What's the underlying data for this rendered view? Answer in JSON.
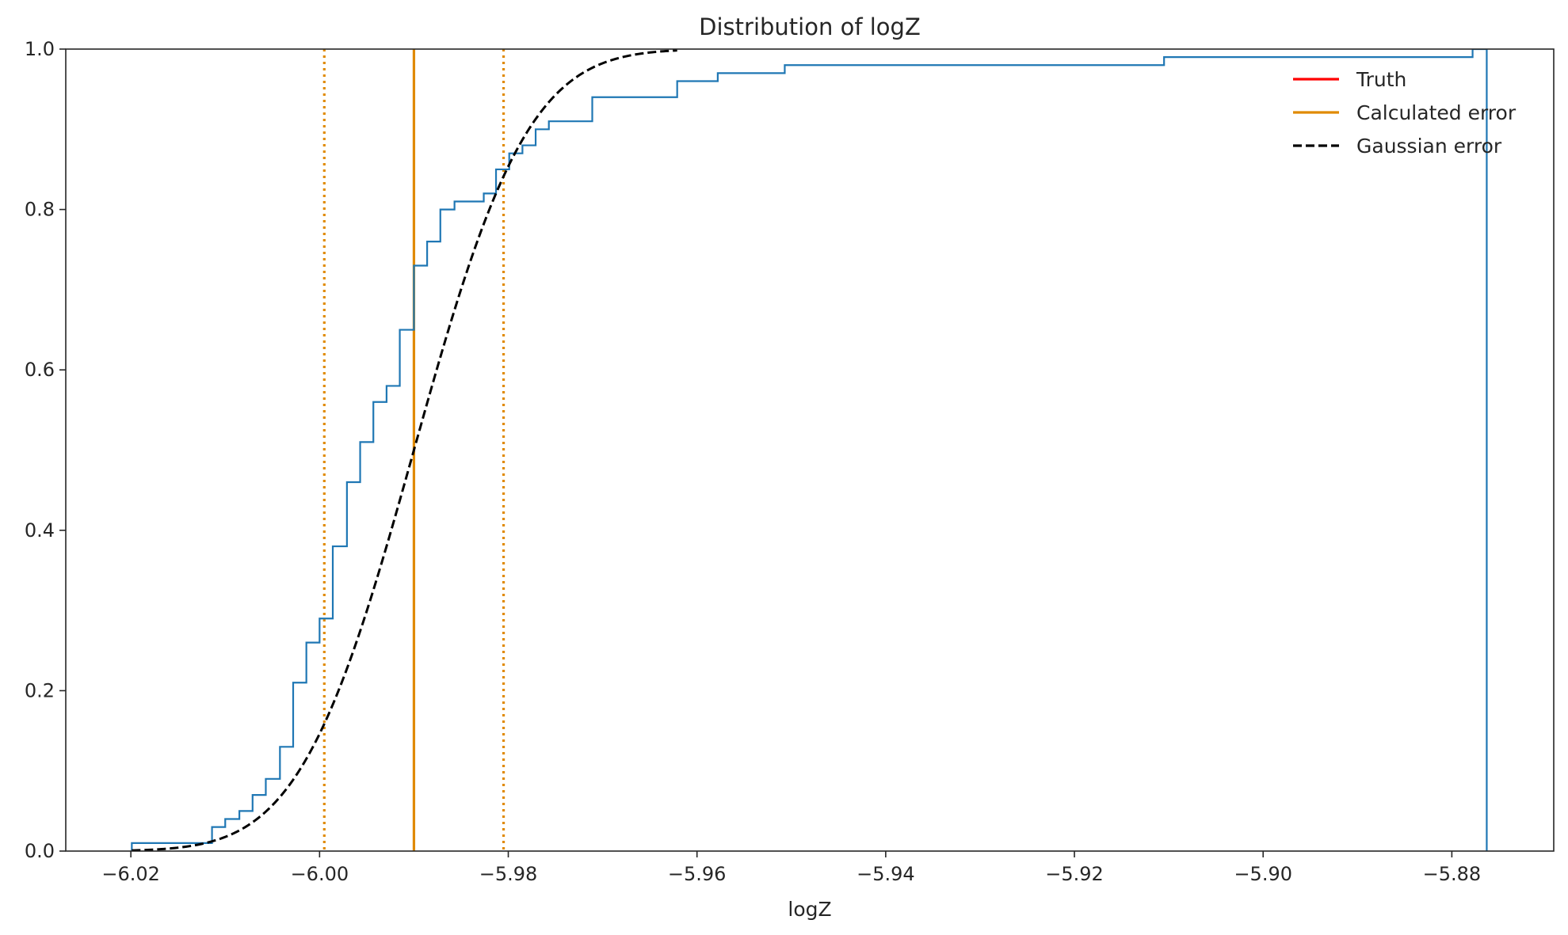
{
  "chart_data": {
    "type": "line",
    "title": "Distribution of logZ",
    "xlabel": "logZ",
    "ylabel": "",
    "xlim": [
      -6.0269,
      -5.8692
    ],
    "ylim": [
      0,
      1
    ],
    "xticks": [
      {
        "value": -6.02,
        "label": "−6.02"
      },
      {
        "value": -6.0,
        "label": "−6.00"
      },
      {
        "value": -5.98,
        "label": "−5.98"
      },
      {
        "value": -5.96,
        "label": "−5.96"
      },
      {
        "value": -5.94,
        "label": "−5.94"
      },
      {
        "value": -5.92,
        "label": "−5.92"
      },
      {
        "value": -5.9,
        "label": "−5.90"
      },
      {
        "value": -5.88,
        "label": "−5.88"
      }
    ],
    "yticks": [
      {
        "value": 0.0,
        "label": "0.0"
      },
      {
        "value": 0.2,
        "label": "0.2"
      },
      {
        "value": 0.4,
        "label": "0.4"
      },
      {
        "value": 0.6,
        "label": "0.6"
      },
      {
        "value": 0.8,
        "label": "0.8"
      },
      {
        "value": 1.0,
        "label": "1.0"
      }
    ],
    "grid": false,
    "legend_position": "top-right",
    "legend": [
      {
        "label": "Truth",
        "color": "#ff0000",
        "style": "solid"
      },
      {
        "label": "Calculated error",
        "color": "#e08a00",
        "style": "solid"
      },
      {
        "label": "Gaussian error",
        "color": "#000000",
        "style": "dashed"
      }
    ],
    "ecdf": {
      "color": "#1f77b4",
      "steps": [
        {
          "x": -6.0199,
          "y": 0.01
        },
        {
          "x": -6.0114,
          "y": 0.03
        },
        {
          "x": -6.01,
          "y": 0.04
        },
        {
          "x": -6.0085,
          "y": 0.05
        },
        {
          "x": -6.0071,
          "y": 0.07
        },
        {
          "x": -6.0057,
          "y": 0.09
        },
        {
          "x": -6.0042,
          "y": 0.13
        },
        {
          "x": -6.0028,
          "y": 0.21
        },
        {
          "x": -6.0014,
          "y": 0.26
        },
        {
          "x": -6.0,
          "y": 0.29
        },
        {
          "x": -5.9986,
          "y": 0.38
        },
        {
          "x": -5.9971,
          "y": 0.46
        },
        {
          "x": -5.9957,
          "y": 0.51
        },
        {
          "x": -5.9943,
          "y": 0.56
        },
        {
          "x": -5.9929,
          "y": 0.58
        },
        {
          "x": -5.9915,
          "y": 0.65
        },
        {
          "x": -5.99,
          "y": 0.73
        },
        {
          "x": -5.9886,
          "y": 0.76
        },
        {
          "x": -5.9872,
          "y": 0.8
        },
        {
          "x": -5.9857,
          "y": 0.81
        },
        {
          "x": -5.9826,
          "y": 0.82
        },
        {
          "x": -5.9813,
          "y": 0.85
        },
        {
          "x": -5.9799,
          "y": 0.87
        },
        {
          "x": -5.9785,
          "y": 0.88
        },
        {
          "x": -5.9771,
          "y": 0.9
        },
        {
          "x": -5.9757,
          "y": 0.91
        },
        {
          "x": -5.9711,
          "y": 0.94
        },
        {
          "x": -5.9621,
          "y": 0.96
        },
        {
          "x": -5.9578,
          "y": 0.97
        },
        {
          "x": -5.9507,
          "y": 0.98
        },
        {
          "x": -5.9105,
          "y": 0.99
        },
        {
          "x": -5.8778,
          "y": 1.0
        }
      ],
      "end_x": -5.8763
    },
    "calculated_error": {
      "mean": -5.99,
      "sigma": 0.0095,
      "color": "#e08a00"
    },
    "gaussian_error": {
      "mean": -5.99,
      "sigma": 0.0095,
      "x_start": -6.0199,
      "x_end": -5.9621,
      "color": "#000000"
    }
  }
}
